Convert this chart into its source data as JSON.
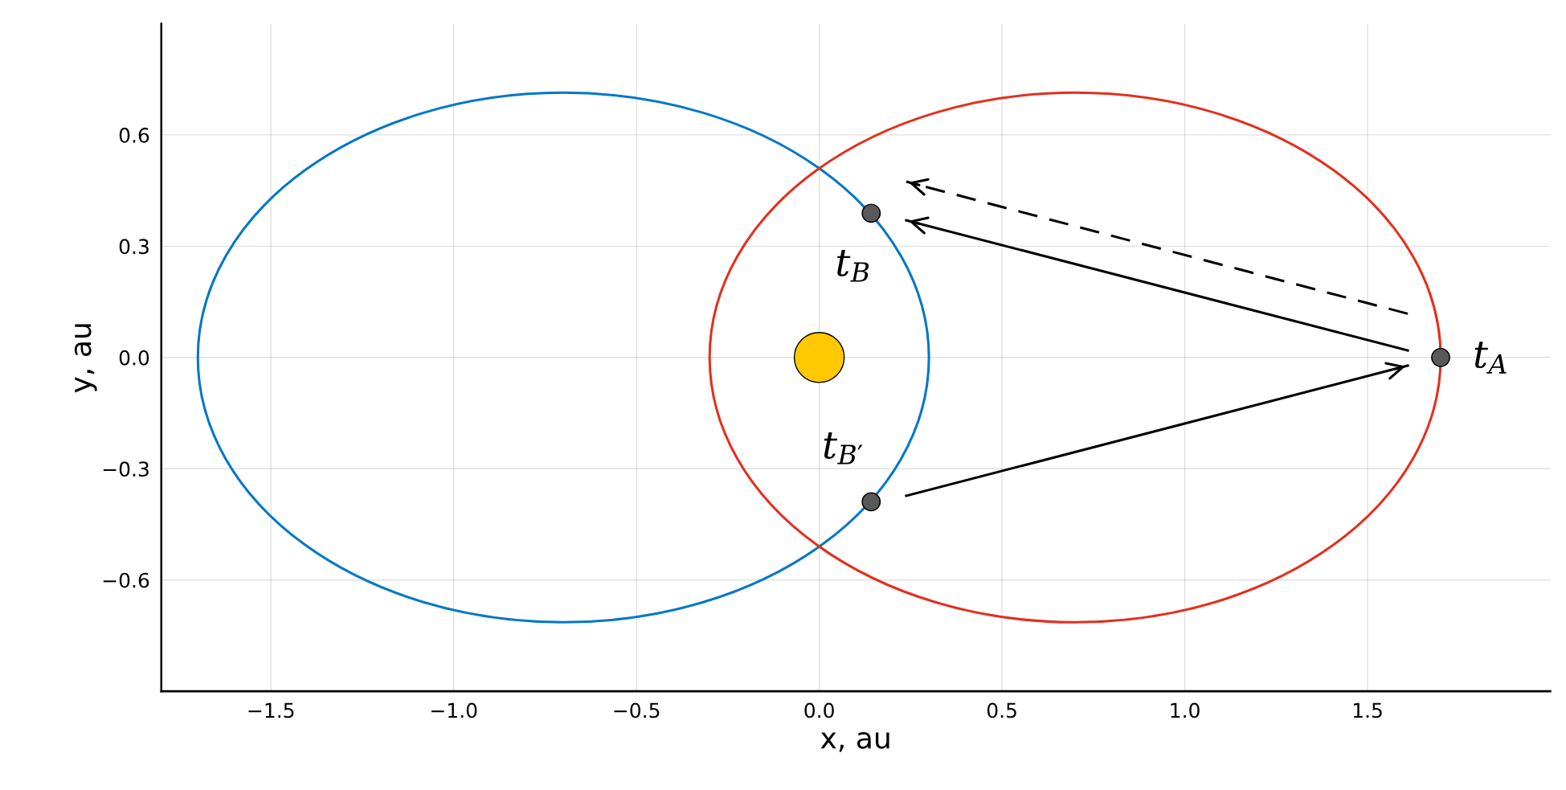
{
  "chart_data": {
    "type": "line",
    "xlabel": "x, au",
    "ylabel": "y, au",
    "xlim": [
      -1.8,
      2.0
    ],
    "ylim": [
      -0.9,
      0.9
    ],
    "xticks": [
      {
        "value": -1.5,
        "label": "−1.5"
      },
      {
        "value": -1.0,
        "label": "−1.0"
      },
      {
        "value": -0.5,
        "label": "−0.5"
      },
      {
        "value": 0,
        "label": "0.0"
      },
      {
        "value": 0.5,
        "label": "0.5"
      },
      {
        "value": 1.0,
        "label": "1.0"
      },
      {
        "value": 1.5,
        "label": "1.5"
      }
    ],
    "yticks": [
      {
        "value": -0.6,
        "label": "−0.6"
      },
      {
        "value": -0.3,
        "label": "−0.3"
      },
      {
        "value": 0,
        "label": "0.0"
      },
      {
        "value": 0.3,
        "label": "0.3"
      },
      {
        "value": 0.6,
        "label": "0.6"
      }
    ],
    "grid": true,
    "series": [
      {
        "color": "#000000",
        "line_style": "solid",
        "x": [
          1.61,
          0.238
        ],
        "values": [
          0.019,
          0.37
        ]
      },
      {
        "color": "#000000",
        "line_style": "dashed",
        "x": [
          1.61,
          0.238
        ],
        "values": [
          0.118,
          0.474
        ]
      },
      {
        "color": "#000000",
        "line_style": "solid",
        "x": [
          0.238,
          1.61
        ],
        "values": [
          -0.373,
          -0.022
        ]
      },
      {
        "type": "bubble",
        "color": "#ffc800",
        "x": [
          0
        ],
        "values": [
          0
        ],
        "sizes": [
          1
        ]
      },
      {
        "type": "scatter",
        "color": "#595959",
        "marker": "circle",
        "x": [
          0.142,
          0.142,
          1.7
        ],
        "values": [
          0.389,
          -0.389,
          0
        ]
      }
    ],
    "annotations": [
      "t$_{B}$",
      "t$_{B′}$",
      "t$_{A}$"
    ]
  }
}
